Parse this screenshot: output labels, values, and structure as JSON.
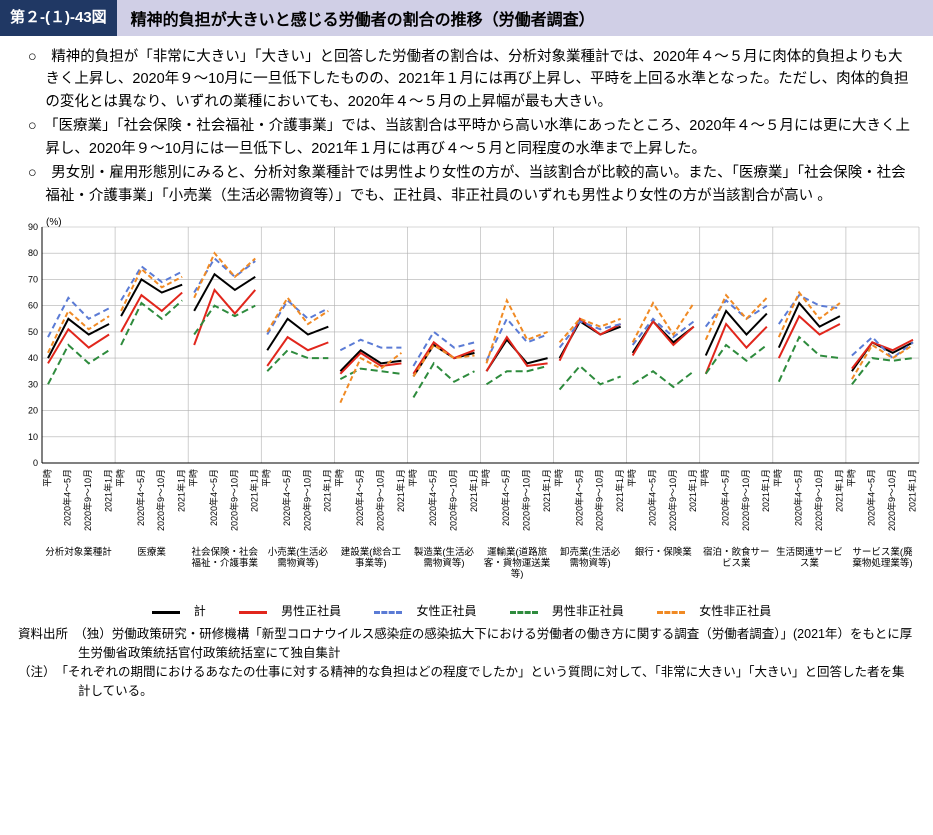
{
  "header": {
    "fig_no": "第２-(１)-43図",
    "title": "精神的負担が大きいと感じる労働者の割合の推移（労働者調査）"
  },
  "bullets": [
    "○　精神的負担が「非常に大きい」「大きい」と回答した労働者の割合は、分析対象業種計では、2020年４～５月に肉体的負担よりも大きく上昇し、2020年９～10月に一旦低下したものの、2021年１月には再び上昇し、平時を上回る水準となった。ただし、肉体的負担の変化とは異なり、いずれの業種においても、2020年４～５月の上昇幅が最も大きい。",
    "○　「医療業」「社会保険・社会福祉・介護事業」では、当該割合は平時から高い水準にあったところ、2020年４～５月には更に大きく上昇し、2020年９～10月には一旦低下し、2021年１月には再び４～５月と同程度の水準まで上昇した。",
    "○　男女別・雇用形態別にみると、分析対象業種計では男性より女性の方が、当該割合が比較的高い。また、「医療業」「社会保険・社会福祉・介護事業」「小売業（生活必需物資等）」でも、正社員、非正社員のいずれも男性より女性の方が当該割合が高い 。"
  ],
  "chart": {
    "type": "line",
    "y_label": "(%)",
    "ylim": [
      0,
      90
    ],
    "ytick_step": 10,
    "x_labels": [
      "平時",
      "2020年4～5月",
      "2020年9～10月",
      "2021年1月"
    ],
    "label_fontsize": 10,
    "tick_fontsize": 9,
    "background_color": "#ffffff",
    "grid_color": "#b0b0b0",
    "line_width": 2,
    "groups": [
      "分析対象業種計",
      "医療業",
      "社会保険・社会福祉・介護事業",
      "小売業(生活必需物資等)",
      "建設業(総合工事業等)",
      "製造業(生活必需物資等)",
      "運輸業(道路旅客・貨物運送業等)",
      "卸売業(生活必需物資等)",
      "銀行・保険業",
      "宿泊・飲食サービス業",
      "生活関連サービス業",
      "サービス業(廃棄物処理業等)"
    ],
    "series": [
      {
        "name": "計",
        "color": "#000000",
        "dash": "",
        "values": [
          [
            40,
            55,
            49,
            53
          ],
          [
            56,
            70,
            65,
            68
          ],
          [
            58,
            72,
            66,
            71
          ],
          [
            43,
            55,
            49,
            52
          ],
          [
            35,
            43,
            38,
            39
          ],
          [
            33,
            45,
            40,
            42
          ],
          [
            35,
            47,
            38,
            40
          ],
          [
            40,
            54,
            49,
            52
          ],
          [
            42,
            54,
            46,
            52
          ],
          [
            41,
            58,
            49,
            57
          ],
          [
            44,
            61,
            52,
            56
          ],
          [
            35,
            46,
            42,
            46
          ]
        ]
      },
      {
        "name": "男性正社員",
        "color": "#e1261c",
        "dash": "",
        "values": [
          [
            38,
            51,
            44,
            49
          ],
          [
            50,
            64,
            58,
            65
          ],
          [
            45,
            66,
            57,
            66
          ],
          [
            37,
            48,
            43,
            46
          ],
          [
            34,
            42,
            37,
            38
          ],
          [
            34,
            46,
            40,
            43
          ],
          [
            35,
            48,
            37,
            38
          ],
          [
            39,
            55,
            49,
            53
          ],
          [
            41,
            54,
            45,
            52
          ],
          [
            34,
            53,
            44,
            52
          ],
          [
            40,
            56,
            49,
            53
          ],
          [
            36,
            46,
            43,
            47
          ]
        ]
      },
      {
        "name": "女性正社員",
        "color": "#5b7bd5",
        "dash": "6 4",
        "values": [
          [
            48,
            63,
            55,
            59
          ],
          [
            62,
            75,
            69,
            73
          ],
          [
            65,
            78,
            71,
            77
          ],
          [
            49,
            62,
            55,
            59
          ],
          [
            43,
            47,
            44,
            44
          ],
          [
            37,
            50,
            44,
            46
          ],
          [
            39,
            55,
            46,
            49
          ],
          [
            44,
            54,
            51,
            53
          ],
          [
            45,
            55,
            48,
            54
          ],
          [
            52,
            62,
            55,
            60
          ],
          [
            53,
            64,
            60,
            59
          ],
          [
            41,
            48,
            40,
            46
          ]
        ]
      },
      {
        "name": "男性非正社員",
        "color": "#2e8b3d",
        "dash": "7 4",
        "values": [
          [
            30,
            45,
            38,
            43
          ],
          [
            45,
            61,
            55,
            62
          ],
          [
            49,
            60,
            56,
            60
          ],
          [
            35,
            43,
            40,
            40
          ],
          [
            32,
            36,
            35,
            34
          ],
          [
            25,
            38,
            31,
            35
          ],
          [
            30,
            35,
            35,
            37
          ],
          [
            28,
            37,
            30,
            33
          ],
          [
            30,
            35,
            29,
            35
          ],
          [
            34,
            45,
            39,
            45
          ],
          [
            31,
            48,
            41,
            40
          ],
          [
            30,
            40,
            39,
            40
          ]
        ]
      },
      {
        "name": "女性非正社員",
        "color": "#f08a24",
        "dash": "5 3",
        "values": [
          [
            42,
            58,
            51,
            56
          ],
          [
            58,
            74,
            67,
            71
          ],
          [
            63,
            80,
            71,
            78
          ],
          [
            50,
            63,
            53,
            58
          ],
          [
            23,
            40,
            36,
            42
          ],
          [
            33,
            45,
            40,
            41
          ],
          [
            38,
            62,
            47,
            50
          ],
          [
            46,
            55,
            52,
            55
          ],
          [
            46,
            61,
            49,
            61
          ],
          [
            47,
            64,
            55,
            63
          ],
          [
            48,
            65,
            55,
            61
          ],
          [
            32,
            45,
            40,
            45
          ]
        ]
      }
    ]
  },
  "legend_labels": {
    "total": "計",
    "m_reg": "男性正社員",
    "f_reg": "女性正社員",
    "m_non": "男性非正社員",
    "f_non": "女性非正社員"
  },
  "notes": {
    "source_label": "資料出所　",
    "source": "（独）労働政策研究・研修機構「新型コロナウイルス感染症の感染拡大下における労働者の働き方に関する調査（労働者調査）」(2021年）をもとに厚生労働省政策統括官付政策統括室にて独自集計",
    "note_label": "（注）　",
    "note": "「それぞれの期間におけるあなたの仕事に対する精神的な負担はどの程度でしたか」という質問に対して、「非常に大きい」「大きい」と回答した者を集計している。"
  }
}
